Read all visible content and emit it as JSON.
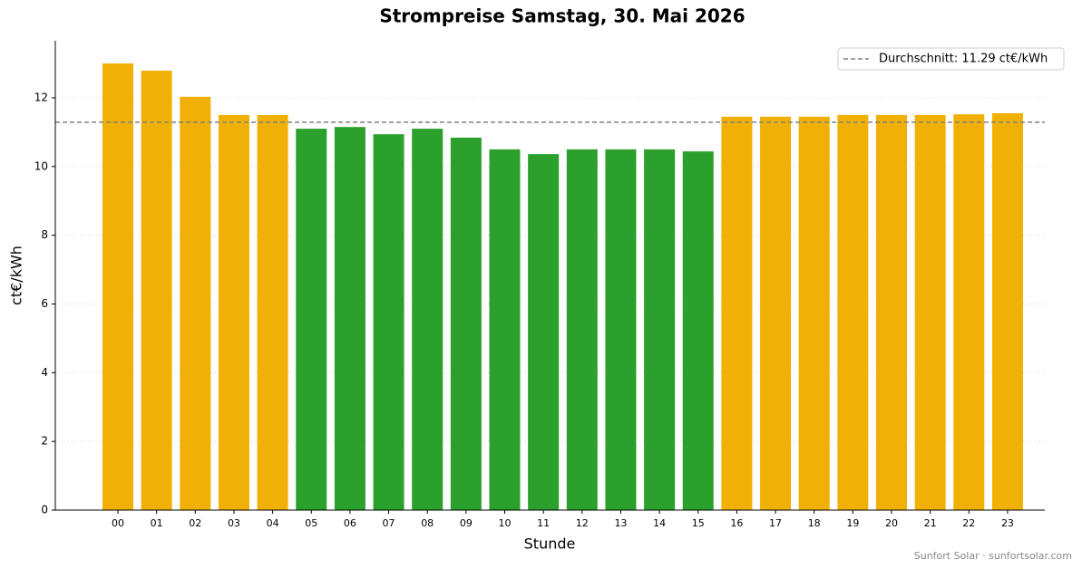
{
  "chart_data": {
    "type": "bar",
    "title": "Strompreise Samstag, 30. Mai 2026",
    "x_label": "Stunde",
    "y_label": "ct€/kWh",
    "categories": [
      "00",
      "01",
      "02",
      "03",
      "04",
      "05",
      "06",
      "07",
      "08",
      "09",
      "10",
      "11",
      "12",
      "13",
      "14",
      "15",
      "16",
      "17",
      "18",
      "19",
      "20",
      "21",
      "22",
      "23"
    ],
    "values": [
      13.0,
      12.79,
      12.03,
      11.5,
      11.5,
      11.1,
      11.15,
      10.94,
      11.1,
      10.84,
      10.5,
      10.36,
      10.5,
      10.5,
      10.5,
      10.44,
      11.45,
      11.45,
      11.45,
      11.5,
      11.5,
      11.5,
      11.52,
      11.55
    ],
    "colors": [
      "#f0b005",
      "#f0b005",
      "#f0b005",
      "#f0b005",
      "#f0b005",
      "#2ca02c",
      "#2ca02c",
      "#2ca02c",
      "#2ca02c",
      "#2ca02c",
      "#2ca02c",
      "#2ca02c",
      "#2ca02c",
      "#2ca02c",
      "#2ca02c",
      "#2ca02c",
      "#f0b005",
      "#f0b005",
      "#f0b005",
      "#f0b005",
      "#f0b005",
      "#f0b005",
      "#f0b005",
      "#f0b005"
    ],
    "average": 11.29,
    "average_label": "Durchschnitt: 11.29 ct€/kWh",
    "average_color": "#808080",
    "ylim": [
      0,
      13.66
    ],
    "yticks": [
      0,
      2,
      4,
      6,
      8,
      10,
      12
    ],
    "grid": true,
    "legend_position": "upper-right",
    "footer": "Sunfort Solar · sunfortsolar.com"
  }
}
